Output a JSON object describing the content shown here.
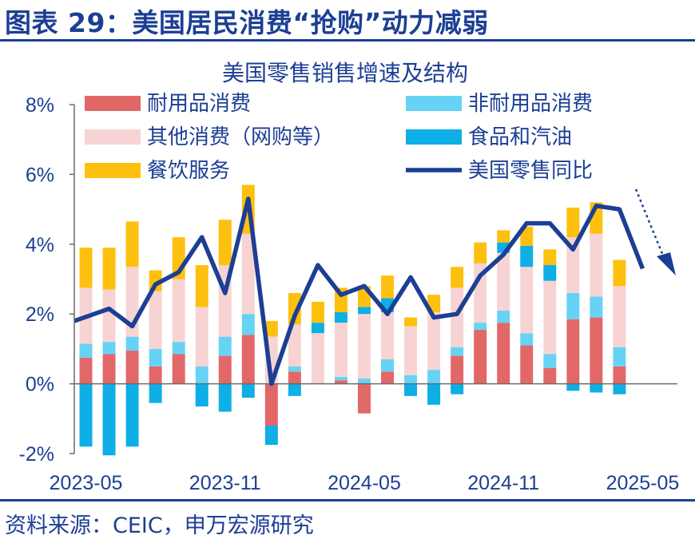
{
  "figure": {
    "title": "图表 29：美国居民消费“抢购”动力减弱",
    "source": "资料来源：CEIC，申万宏源研究"
  },
  "chart_data": {
    "type": "bar",
    "stacked": true,
    "title": "美国零售销售增速及结构",
    "xlabel": "",
    "ylabel": "",
    "ylim": [
      -2,
      8
    ],
    "yticks": [
      {
        "value": -2,
        "label": "-2%"
      },
      {
        "value": 0,
        "label": "0%"
      },
      {
        "value": 2,
        "label": "2%"
      },
      {
        "value": 4,
        "label": "4%"
      },
      {
        "value": 6,
        "label": "6%"
      },
      {
        "value": 8,
        "label": "8%"
      }
    ],
    "categories": [
      "2023-05",
      "2023-06",
      "2023-07",
      "2023-08",
      "2023-09",
      "2023-10",
      "2023-11",
      "2023-12",
      "2024-01",
      "2024-02",
      "2024-03",
      "2024-04",
      "2024-05",
      "2024-06",
      "2024-07",
      "2024-08",
      "2024-09",
      "2024-10",
      "2024-11",
      "2024-12",
      "2025-01",
      "2025-02",
      "2025-03",
      "2025-04",
      "2025-05",
      "2025-06"
    ],
    "xticks": [
      {
        "index": 0,
        "label": "2023-05"
      },
      {
        "index": 6,
        "label": "2023-11"
      },
      {
        "index": 12,
        "label": "2024-05"
      },
      {
        "index": 18,
        "label": "2024-11"
      },
      {
        "index": 24,
        "label": "2025-05"
      }
    ],
    "series": [
      {
        "name": "耐用品消费",
        "kind": "bar",
        "color": "#e26868",
        "values": [
          0.75,
          0.85,
          0.95,
          0.5,
          0.85,
          0.0,
          0.8,
          1.4,
          -1.2,
          0.35,
          0.0,
          0.1,
          -0.85,
          0.35,
          0.0,
          0.0,
          0.8,
          1.55,
          1.75,
          1.1,
          0.45,
          1.85,
          1.9,
          0.5,
          0.0,
          0.0
        ]
      },
      {
        "name": "非耐用品消费",
        "kind": "bar",
        "color": "#66d3f5",
        "values": [
          0.4,
          0.35,
          0.4,
          0.5,
          0.35,
          0.5,
          0.55,
          0.6,
          0.0,
          0.15,
          0.0,
          0.1,
          0.15,
          0.35,
          0.25,
          0.4,
          0.25,
          0.2,
          0.35,
          0.35,
          0.4,
          0.75,
          0.6,
          0.55,
          0.0,
          0.0
        ]
      },
      {
        "name": "其他消费（网购等）",
        "kind": "bar",
        "color": "#f8d3d4",
        "values": [
          1.6,
          1.5,
          2.0,
          1.65,
          1.8,
          1.7,
          2.05,
          2.3,
          1.35,
          1.2,
          1.45,
          1.55,
          1.85,
          1.35,
          1.4,
          1.65,
          1.7,
          1.7,
          1.65,
          1.9,
          2.1,
          1.6,
          1.8,
          1.75,
          0.0,
          0.0
        ]
      },
      {
        "name": "食品和汽油",
        "kind": "bar",
        "color": "#0eaee6",
        "values": [
          -1.8,
          -2.05,
          -1.8,
          -0.55,
          0.0,
          -0.65,
          -0.8,
          -0.4,
          -0.55,
          -0.35,
          0.3,
          0.3,
          0.2,
          0.4,
          -0.35,
          -0.6,
          -0.3,
          0.0,
          0.3,
          0.6,
          0.45,
          -0.2,
          -0.25,
          -0.3,
          0.0,
          0.0
        ]
      },
      {
        "name": "餐饮服务",
        "kind": "bar",
        "color": "#fec00f",
        "values": [
          1.15,
          1.2,
          1.3,
          0.6,
          1.2,
          1.2,
          1.3,
          1.4,
          0.45,
          0.9,
          0.6,
          0.7,
          0.6,
          0.65,
          0.25,
          0.5,
          0.6,
          0.6,
          0.35,
          0.55,
          0.45,
          0.85,
          0.9,
          0.75,
          0.0,
          0.0
        ]
      },
      {
        "name": "美国零售同比",
        "kind": "line",
        "color": "#1c3f94",
        "values": [
          1.8,
          2.15,
          1.65,
          2.85,
          3.2,
          4.2,
          2.6,
          5.3,
          0.0,
          1.95,
          3.4,
          2.55,
          2.8,
          2.0,
          3.05,
          1.9,
          2.0,
          3.1,
          3.7,
          4.6,
          4.6,
          3.85,
          5.1,
          5.0,
          3.3,
          null
        ]
      }
    ],
    "legend": "top, two columns",
    "grid": false,
    "annotation": {
      "type": "dotted-arrow",
      "direction": "down-right",
      "color": "#1c3f94"
    }
  }
}
